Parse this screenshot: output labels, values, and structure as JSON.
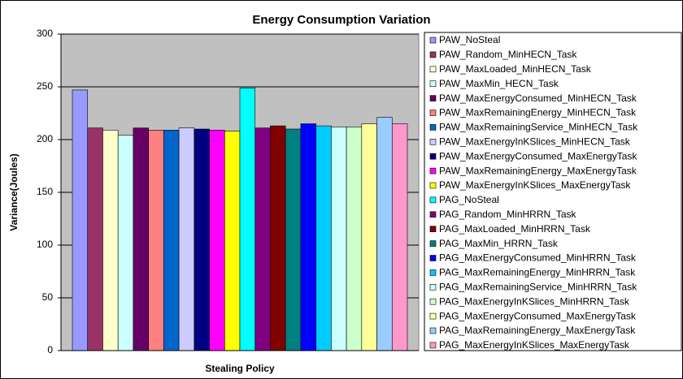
{
  "chart_data": {
    "type": "bar",
    "title": "Energy Consumption Variation",
    "x_label": "Stealing Policy",
    "y_label": "Variance(Joules)",
    "categories": [
      null
    ],
    "ylim": [
      0,
      300
    ],
    "yticks": [
      0,
      50,
      100,
      150,
      200,
      250,
      300
    ],
    "grid": true,
    "legend_position": "right",
    "series": [
      {
        "name": "PAW_NoSteal",
        "color": "#9999FF",
        "values": [
          247
        ]
      },
      {
        "name": "PAW_Random_MinHECN_Task",
        "color": "#993366",
        "values": [
          211
        ]
      },
      {
        "name": "PAW_MaxLoaded_MinHECN_Task",
        "color": "#FFFFCC",
        "values": [
          209
        ]
      },
      {
        "name": "PAW_MaxMin_HECN_Task",
        "color": "#CCFFFF",
        "values": [
          204
        ]
      },
      {
        "name": "PAW_MaxEnergyConsumed_MinHECN_Task",
        "color": "#660066",
        "values": [
          211
        ]
      },
      {
        "name": "PAW_MaxRemainingEnergy_MinHECN_Task",
        "color": "#FF8080",
        "values": [
          209
        ]
      },
      {
        "name": "PAW_MaxRemainingService_MinHECN_Task",
        "color": "#0066CC",
        "values": [
          209
        ]
      },
      {
        "name": "PAW_MaxEnergyInKSlices_MinHECN_Task",
        "color": "#CCCCFF",
        "values": [
          211
        ]
      },
      {
        "name": "PAW_MaxEnergyConsumed_MaxEnergyTask",
        "color": "#000080",
        "values": [
          210
        ]
      },
      {
        "name": "PAW_MaxRemainingEnergy_MaxEnergyTask",
        "color": "#FF00FF",
        "values": [
          209
        ]
      },
      {
        "name": "PAW_MaxEnergyInKSlices_MaxEnergyTask",
        "color": "#FFFF00",
        "values": [
          208
        ]
      },
      {
        "name": "PAG_NoSteal",
        "color": "#00FFFF",
        "values": [
          249
        ]
      },
      {
        "name": "PAG_Random_MinHRRN_Task",
        "color": "#800080",
        "values": [
          211
        ]
      },
      {
        "name": "PAG_MaxLoaded_MinHRRN_Task",
        "color": "#800000",
        "values": [
          213
        ]
      },
      {
        "name": "PAG_MaxMin_HRRN_Task",
        "color": "#008080",
        "values": [
          210
        ]
      },
      {
        "name": "PAG_MaxEnergyConsumed_MinHRRN_Task",
        "color": "#0000FF",
        "values": [
          215
        ]
      },
      {
        "name": "PAG_MaxRemainingEnergy_MinHRRN_Task",
        "color": "#00CCFF",
        "values": [
          213
        ]
      },
      {
        "name": "PAG_MaxRemainingService_MinHRRN_Task",
        "color": "#CCFFFF",
        "values": [
          212
        ]
      },
      {
        "name": "PAG_MaxEnergyInKSlices_MinHRRN_Task",
        "color": "#CCFFCC",
        "values": [
          212
        ]
      },
      {
        "name": "PAG_MaxEnergyConsumed_MaxEnergyTask",
        "color": "#FFFF99",
        "values": [
          215
        ]
      },
      {
        "name": "PAG_MaxRemainingEnergy_MaxEnergyTask",
        "color": "#99CCFF",
        "values": [
          221
        ]
      },
      {
        "name": "PAG_MaxEnergyInKSlices_MaxEnergyTask",
        "color": "#FF99CC",
        "values": [
          215
        ]
      }
    ]
  }
}
